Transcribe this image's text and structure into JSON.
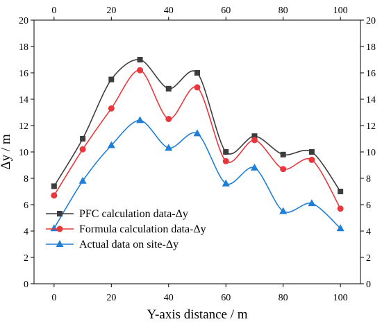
{
  "chart_data": {
    "type": "line",
    "title": "",
    "xlabel": "Y-axis distance / m",
    "ylabel": "Δy / m",
    "xlim": [
      -7,
      107
    ],
    "ylim": [
      0,
      20
    ],
    "x_ticks": [
      "0",
      "20",
      "40",
      "60",
      "80",
      "100"
    ],
    "y_ticks": [
      "0",
      "2",
      "4",
      "6",
      "8",
      "10",
      "12",
      "14",
      "16",
      "18",
      "20"
    ],
    "x_tick_values": [
      0,
      20,
      40,
      60,
      80,
      100
    ],
    "y_tick_values": [
      0,
      2,
      4,
      6,
      8,
      10,
      12,
      14,
      16,
      18,
      20
    ],
    "x": [
      0,
      10,
      20,
      30,
      40,
      50,
      60,
      70,
      80,
      90,
      100
    ],
    "grid": false,
    "mirrored_axes": true,
    "smooth_lines": true,
    "legend_position": "lower-left",
    "series": [
      {
        "name": "PFC calculation data-Δy",
        "color": "#3d3d3d",
        "marker": "square",
        "values": [
          7.4,
          11.0,
          15.5,
          17.0,
          14.8,
          16.0,
          10.0,
          11.2,
          9.8,
          10.0,
          7.0
        ]
      },
      {
        "name": "Formula calculation data-Δy",
        "color": "#e8383d",
        "marker": "circle",
        "values": [
          6.7,
          10.2,
          13.3,
          16.2,
          12.5,
          14.9,
          9.3,
          10.9,
          8.7,
          9.4,
          5.7
        ]
      },
      {
        "name": "Actual data on site-Δy",
        "color": "#1f7fd6",
        "marker": "triangle",
        "values": [
          4.2,
          7.8,
          10.5,
          12.4,
          10.3,
          11.4,
          7.6,
          8.8,
          5.5,
          6.1,
          4.2
        ]
      }
    ]
  }
}
